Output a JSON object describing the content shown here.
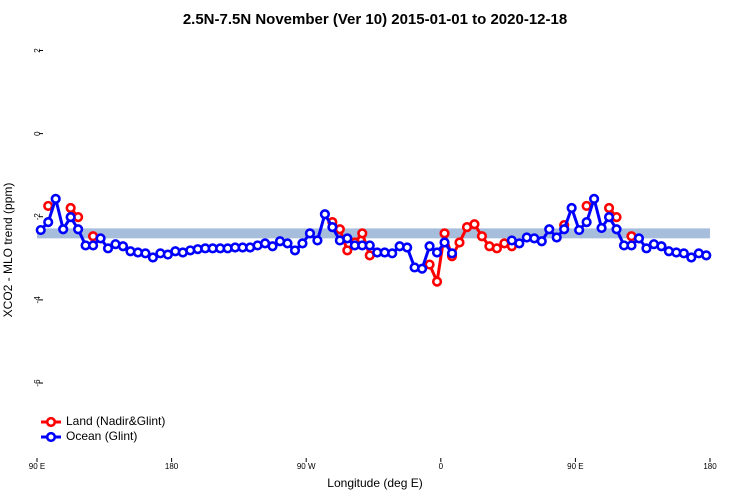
{
  "chart_data": {
    "type": "line",
    "title": "2.5N-7.5N November (Ver 10)   2015-01-01 to 2020-12-18",
    "x_label": "Longitude (deg E)",
    "y_label": "XCO2 - MLO trend (ppm)",
    "xlim": [
      90,
      540
    ],
    "ylim": [
      -7.9,
      2.3
    ],
    "xticks": [
      {
        "value": 90,
        "label": "90 E"
      },
      180,
      {
        "value": 270,
        "label": "90 W"
      },
      {
        "value": 360,
        "label": "0"
      },
      {
        "value": 450,
        "label": "90 E"
      },
      {
        "value": 540,
        "label": "180"
      }
    ],
    "yticks": [
      -6,
      -4,
      -2,
      0,
      2
    ],
    "band": [
      -2.52,
      -2.28
    ],
    "band_color": "#a6bddb",
    "legend": "bottom-left",
    "x": [
      92.5,
      97.5,
      102.5,
      107.5,
      112.5,
      117.5,
      122.5,
      127.5,
      132.5,
      137.5,
      142.5,
      147.5,
      152.5,
      157.5,
      162.5,
      167.5,
      172.5,
      177.5,
      182.5,
      187.5,
      192.5,
      197.5,
      202.5,
      207.5,
      212.5,
      217.5,
      222.5,
      227.5,
      232.5,
      237.5,
      242.5,
      247.5,
      252.5,
      257.5,
      262.5,
      267.5,
      272.5,
      277.5,
      282.5,
      287.5,
      292.5,
      297.5,
      302.5,
      307.5,
      312.5,
      317.5,
      322.5,
      327.5,
      332.5,
      337.5,
      342.5,
      347.5,
      352.5,
      357.5,
      362.5,
      367.5,
      372.5,
      377.5,
      382.5,
      387.5,
      392.5,
      397.5,
      402.5,
      407.5,
      412.5,
      417.5,
      422.5,
      427.5,
      432.5,
      437.5,
      442.5,
      447.5,
      452.5,
      457.5,
      462.5,
      467.5,
      472.5,
      477.5,
      482.5,
      487.5,
      492.5,
      497.5,
      502.5,
      507.5,
      512.5,
      517.5,
      522.5,
      527.5,
      532.5,
      537.5
    ],
    "series": [
      {
        "name": "Land (Nadir&Glint)",
        "color": "#ff0000",
        "values": [
          null,
          -1.74,
          null,
          null,
          -1.79,
          -2.01,
          null,
          -2.47,
          null,
          null,
          null,
          null,
          null,
          null,
          null,
          null,
          null,
          null,
          null,
          null,
          null,
          null,
          null,
          null,
          null,
          null,
          null,
          null,
          null,
          null,
          null,
          null,
          null,
          null,
          null,
          null,
          null,
          null,
          null,
          -2.13,
          -2.3,
          -2.81,
          -2.62,
          -2.4,
          -2.93,
          null,
          null,
          null,
          null,
          null,
          null,
          null,
          -3.15,
          -3.56,
          -2.4,
          -2.95,
          -2.62,
          -2.25,
          -2.18,
          -2.47,
          -2.71,
          -2.76,
          -2.64,
          -2.71,
          null,
          null,
          null,
          null,
          null,
          null,
          -2.2,
          null,
          null,
          -1.74,
          null,
          null,
          -1.79,
          -2.01,
          null,
          -2.47,
          null,
          null,
          null,
          null,
          null,
          null,
          null,
          null,
          null,
          null
        ]
      },
      {
        "name": "Ocean (Glint)",
        "color": "#0000ff",
        "values": [
          -2.32,
          -2.13,
          -1.57,
          -2.3,
          -2.01,
          -2.3,
          -2.69,
          -2.69,
          -2.52,
          -2.76,
          -2.66,
          -2.71,
          -2.83,
          -2.86,
          -2.88,
          -2.98,
          -2.88,
          -2.91,
          -2.83,
          -2.86,
          -2.81,
          -2.78,
          -2.76,
          -2.76,
          -2.76,
          -2.76,
          -2.74,
          -2.74,
          -2.74,
          -2.69,
          -2.64,
          -2.71,
          -2.59,
          -2.64,
          -2.81,
          -2.64,
          -2.4,
          -2.57,
          -1.94,
          -2.25,
          -2.57,
          -2.52,
          -2.69,
          -2.69,
          -2.69,
          -2.86,
          -2.86,
          -2.88,
          -2.71,
          -2.74,
          -3.22,
          -3.25,
          -2.71,
          -2.86,
          -2.62,
          -2.88,
          null,
          null,
          null,
          null,
          null,
          null,
          null,
          -2.57,
          -2.64,
          -2.5,
          -2.52,
          -2.59,
          -2.3,
          -2.5,
          -2.3,
          -1.79,
          -2.32,
          -2.13,
          -1.57,
          -2.27,
          -2.01,
          -2.3,
          -2.69,
          -2.69,
          -2.52,
          -2.76,
          -2.66,
          -2.71,
          -2.83,
          -2.86,
          -2.88,
          -2.98,
          -2.88,
          -2.93
        ]
      }
    ]
  }
}
